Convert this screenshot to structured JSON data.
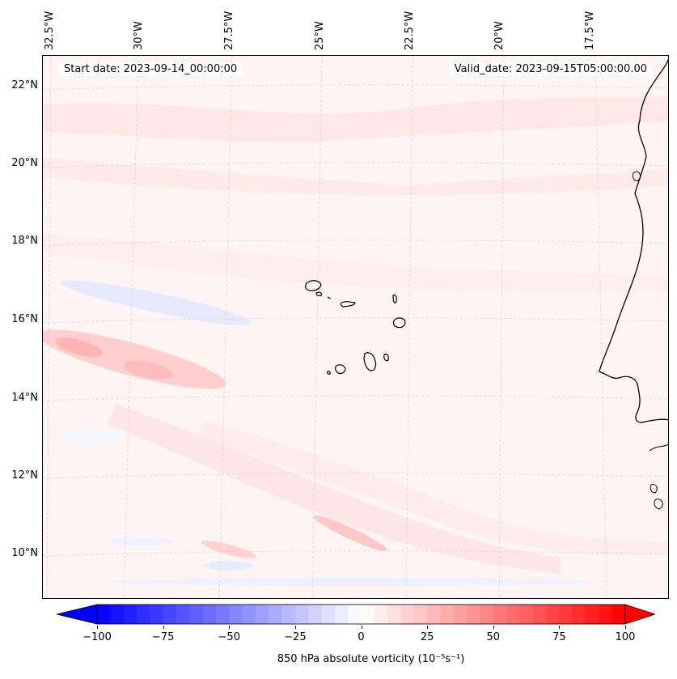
{
  "header": {
    "start_date": "Start date: 2023-09-14_00:00:00",
    "valid_date": "Valid_date: 2023-09-15T05:00:00.00"
  },
  "axes": {
    "lon_labels": [
      "32.5°W",
      "30°W",
      "27.5°W",
      "25°W",
      "22.5°W",
      "20°W",
      "17.5°W"
    ],
    "lat_labels": [
      "22°N",
      "20°N",
      "18°N",
      "16°N",
      "14°N",
      "12°N",
      "10°N"
    ]
  },
  "colorbar": {
    "label": "850 hPa absolute vorticity (10⁻⁵s⁻¹)",
    "ticks": [
      "−100",
      "−75",
      "−50",
      "−25",
      "0",
      "25",
      "50",
      "75",
      "100"
    ],
    "min": -100,
    "max": 100,
    "low_color": "#0000ff",
    "mid_color": "#ffffff",
    "high_color": "#ff0000"
  },
  "colors": {
    "background_field": "#fff5f5",
    "coastline": "#000000",
    "gridline": "#cccccc"
  }
}
